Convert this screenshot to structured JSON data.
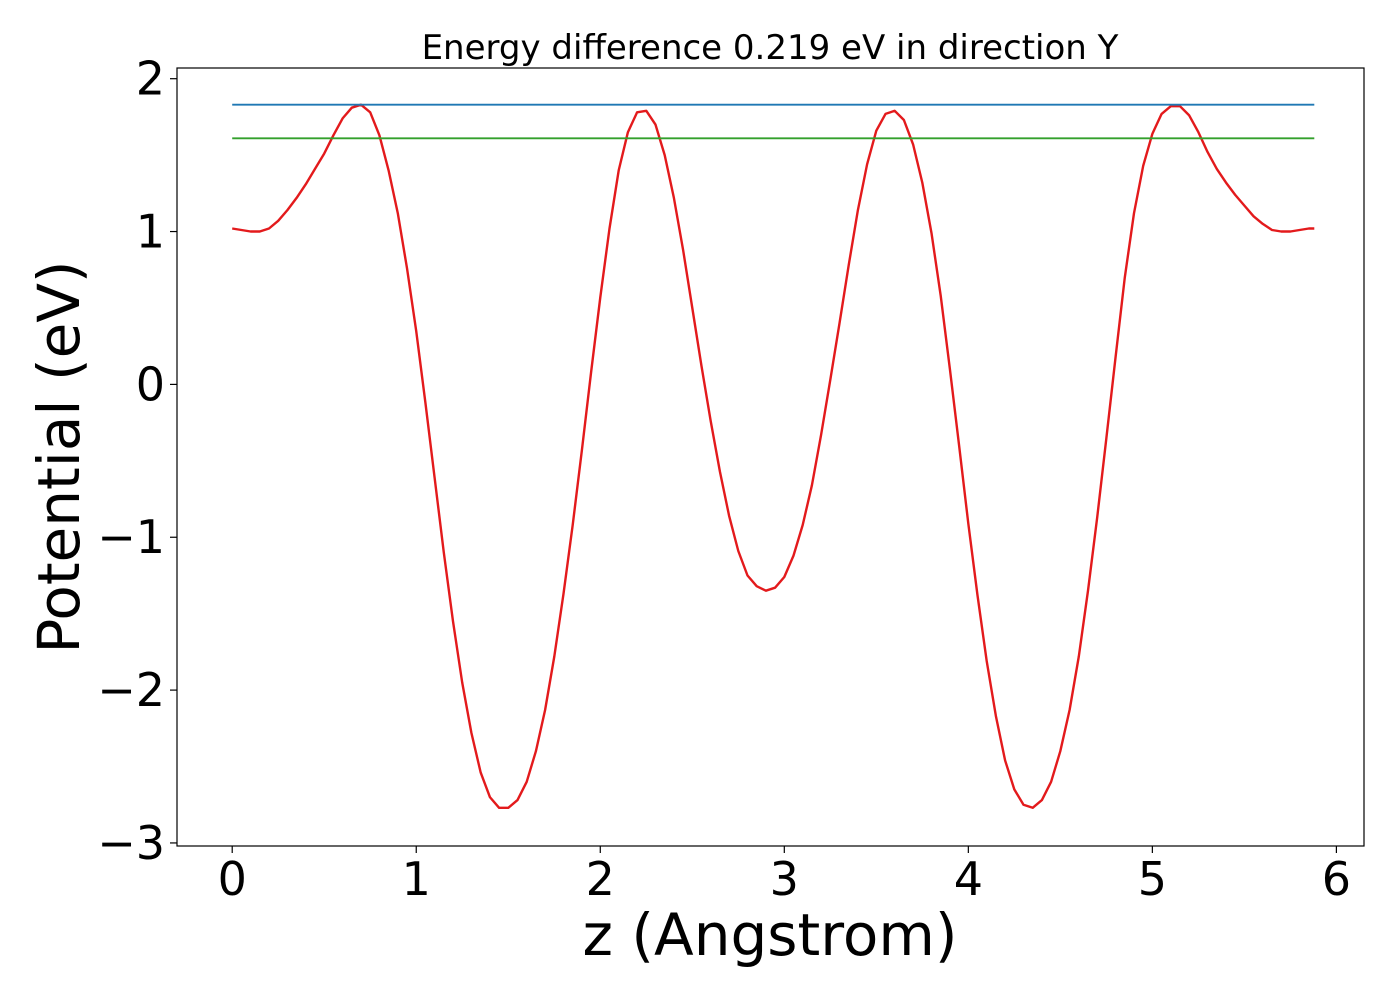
{
  "chart_data": {
    "type": "line",
    "title": "Energy difference 0.219 eV in direction Y",
    "xlabel": "z (Angstrom)",
    "ylabel": "Potential (eV)",
    "xlim": [
      -0.3,
      6.15
    ],
    "ylim": [
      -3.02,
      2.07
    ],
    "xticks": [
      0,
      1,
      2,
      3,
      4,
      5,
      6
    ],
    "xtick_labels": [
      "0",
      "1",
      "2",
      "3",
      "4",
      "5",
      "6"
    ],
    "yticks": [
      -3,
      -2,
      -1,
      0,
      1,
      2
    ],
    "ytick_labels": [
      "−3",
      "−2",
      "−1",
      "0",
      "1",
      "2"
    ],
    "grid": false,
    "series": [
      {
        "color": "#e31a1c",
        "x": [
          0.0,
          0.05,
          0.1,
          0.15,
          0.2,
          0.25,
          0.3,
          0.35,
          0.4,
          0.45,
          0.5,
          0.55,
          0.6,
          0.65,
          0.7,
          0.75,
          0.8,
          0.85,
          0.9,
          0.95,
          1.0,
          1.05,
          1.1,
          1.15,
          1.2,
          1.25,
          1.3,
          1.35,
          1.4,
          1.45,
          1.5,
          1.55,
          1.6,
          1.65,
          1.7,
          1.75,
          1.8,
          1.85,
          1.9,
          1.95,
          2.0,
          2.05,
          2.1,
          2.15,
          2.2,
          2.25,
          2.3,
          2.35,
          2.4,
          2.45,
          2.5,
          2.55,
          2.6,
          2.65,
          2.7,
          2.75,
          2.8,
          2.85,
          2.9,
          2.95,
          3.0,
          3.05,
          3.1,
          3.15,
          3.2,
          3.25,
          3.3,
          3.35,
          3.4,
          3.45,
          3.5,
          3.55,
          3.6,
          3.65,
          3.7,
          3.75,
          3.8,
          3.85,
          3.9,
          3.95,
          4.0,
          4.05,
          4.1,
          4.15,
          4.2,
          4.25,
          4.3,
          4.35,
          4.4,
          4.45,
          4.5,
          4.55,
          4.6,
          4.65,
          4.7,
          4.75,
          4.8,
          4.85,
          4.9,
          4.95,
          5.0,
          5.05,
          5.1,
          5.15,
          5.2,
          5.25,
          5.3,
          5.35,
          5.4,
          5.45,
          5.5,
          5.55,
          5.6,
          5.65,
          5.7,
          5.75,
          5.8,
          5.85,
          5.88
        ],
        "y": [
          1.02,
          1.01,
          1.0,
          1.0,
          1.02,
          1.07,
          1.14,
          1.22,
          1.31,
          1.41,
          1.51,
          1.63,
          1.74,
          1.81,
          1.83,
          1.78,
          1.63,
          1.4,
          1.12,
          0.76,
          0.35,
          -0.12,
          -0.61,
          -1.1,
          -1.55,
          -1.95,
          -2.28,
          -2.54,
          -2.7,
          -2.77,
          -2.77,
          -2.72,
          -2.6,
          -2.4,
          -2.13,
          -1.78,
          -1.37,
          -0.92,
          -0.43,
          0.08,
          0.57,
          1.02,
          1.4,
          1.65,
          1.78,
          1.79,
          1.7,
          1.5,
          1.22,
          0.88,
          0.5,
          0.12,
          -0.24,
          -0.57,
          -0.86,
          -1.09,
          -1.25,
          -1.32,
          -1.35,
          -1.33,
          -1.26,
          -1.12,
          -0.92,
          -0.66,
          -0.33,
          0.03,
          0.4,
          0.78,
          1.14,
          1.44,
          1.66,
          1.77,
          1.79,
          1.73,
          1.57,
          1.32,
          0.99,
          0.58,
          0.1,
          -0.4,
          -0.91,
          -1.38,
          -1.81,
          -2.17,
          -2.46,
          -2.65,
          -2.75,
          -2.77,
          -2.72,
          -2.6,
          -2.4,
          -2.13,
          -1.78,
          -1.35,
          -0.87,
          -0.35,
          0.18,
          0.7,
          1.12,
          1.43,
          1.64,
          1.77,
          1.82,
          1.82,
          1.76,
          1.65,
          1.52,
          1.41,
          1.32,
          1.24,
          1.17,
          1.1,
          1.05,
          1.01,
          1.0,
          1.0,
          1.01,
          1.02,
          1.02
        ]
      },
      {
        "color": "#1f78b4",
        "x": [
          0.0,
          5.88
        ],
        "y": [
          1.83,
          1.83
        ]
      },
      {
        "color": "#33a02c",
        "x": [
          0.0,
          5.88
        ],
        "y": [
          1.61,
          1.61
        ]
      }
    ]
  }
}
